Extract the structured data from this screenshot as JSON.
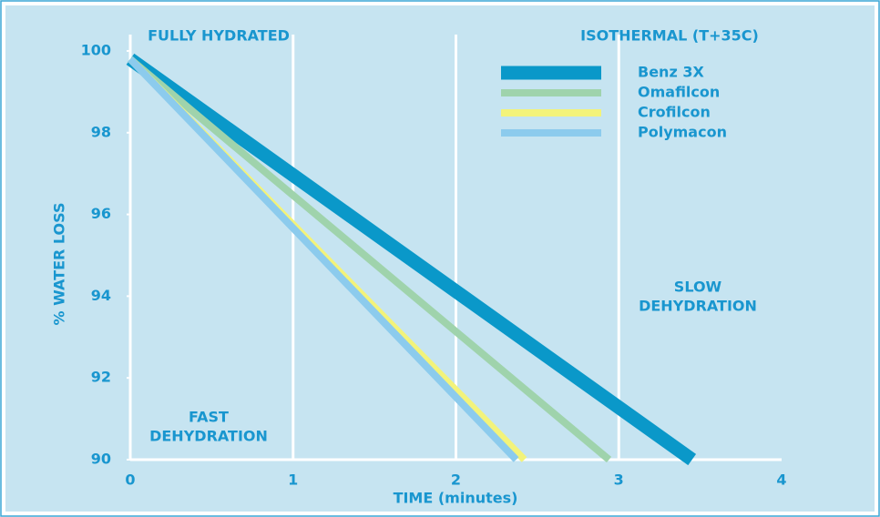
{
  "chart_data": {
    "type": "line",
    "x_label": "TIME (minutes)",
    "y_label": "% WATER LOSS",
    "annotations": {
      "top_left": "FULLY HYDRATED",
      "top_right": "ISOTHERMAL (T+35C)",
      "fast": [
        "FAST",
        "DEHYDRATION"
      ],
      "slow": [
        "SLOW",
        "DEHYDRATION"
      ]
    },
    "series": [
      {
        "name": "Benz 3X",
        "color": "#0a98c9",
        "width": 15,
        "x": [
          0,
          3.45
        ],
        "values": [
          99.8,
          90
        ]
      },
      {
        "name": "Omafilcon",
        "color": "#9fd3ac",
        "width": 8,
        "x": [
          0,
          2.94
        ],
        "values": [
          99.8,
          90
        ]
      },
      {
        "name": "Crofilcon",
        "color": "#f3f37a",
        "width": 8,
        "x": [
          0,
          2.42
        ],
        "values": [
          99.8,
          90
        ]
      },
      {
        "name": "Polymacon",
        "color": "#8ccbed",
        "width": 8,
        "x": [
          0,
          2.37
        ],
        "values": [
          99.8,
          90
        ]
      }
    ],
    "xlim": [
      0,
      4
    ],
    "xticks": [
      0,
      1,
      2,
      3,
      4
    ],
    "ylim": [
      90,
      100.4
    ],
    "yticks": [
      90,
      92,
      94,
      96,
      98,
      100
    ],
    "grid": true,
    "legend": "upper right"
  }
}
